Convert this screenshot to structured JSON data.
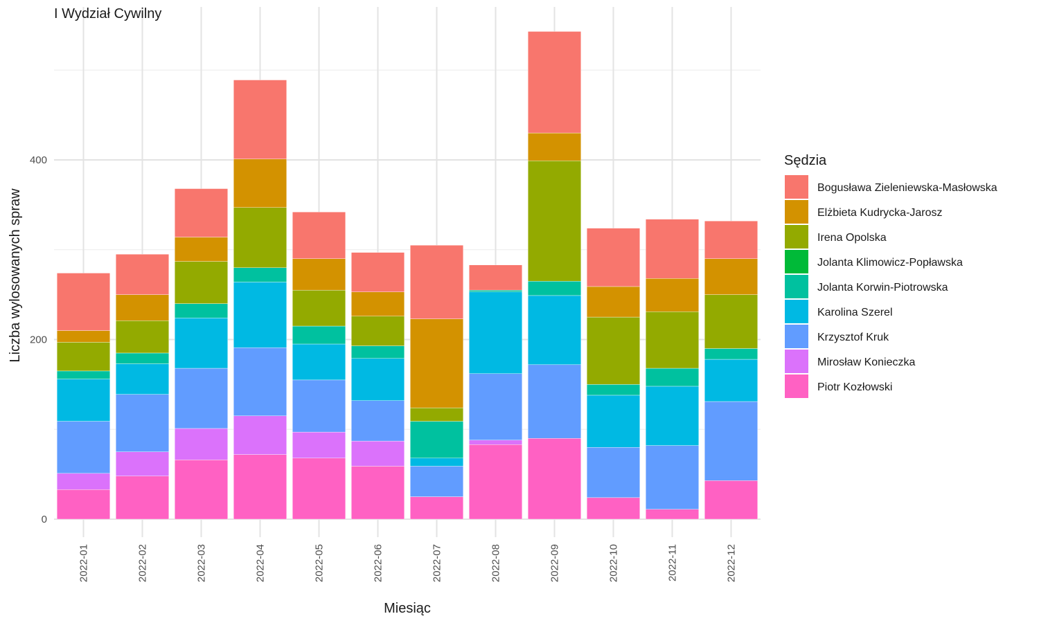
{
  "chart_data": {
    "type": "bar",
    "stacked": true,
    "title": "I Wydział Cywilny",
    "xlabel": "Miesiąc",
    "ylabel": "Liczba wylosowanych spraw",
    "ylim": [
      0,
      560
    ],
    "yticks": [
      0,
      200,
      400
    ],
    "grid": true,
    "legend_title": "Sędzia",
    "legend_position": "right",
    "categories": [
      "2022-01",
      "2022-02",
      "2022-03",
      "2022-04",
      "2022-05",
      "2022-06",
      "2022-07",
      "2022-08",
      "2022-09",
      "2022-10",
      "2022-11",
      "2022-12"
    ],
    "series": [
      {
        "name": "Piotr Kozłowski",
        "color": "#FF61C3",
        "values": [
          33,
          48,
          66,
          72,
          68,
          59,
          25,
          83,
          90,
          24,
          11,
          43
        ]
      },
      {
        "name": "Mirosław Konieczka",
        "color": "#DB72FB",
        "values": [
          18,
          27,
          35,
          43,
          29,
          28,
          0,
          5,
          0,
          0,
          0,
          0
        ]
      },
      {
        "name": "Krzysztof Kruk",
        "color": "#619CFF",
        "values": [
          58,
          64,
          67,
          76,
          58,
          45,
          34,
          74,
          82,
          56,
          71,
          88
        ]
      },
      {
        "name": "Karolina Szerel",
        "color": "#00B9E3",
        "values": [
          47,
          34,
          56,
          73,
          40,
          47,
          9,
          91,
          77,
          58,
          66,
          47
        ]
      },
      {
        "name": "Jolanta Korwin-Piotrowska",
        "color": "#00C19F",
        "values": [
          9,
          12,
          16,
          16,
          20,
          14,
          41,
          2,
          16,
          12,
          20,
          12
        ]
      },
      {
        "name": "Jolanta Klimowicz-Popławska",
        "color": "#00BA38",
        "values": [
          0,
          0,
          0,
          0,
          0,
          0,
          0,
          0,
          0,
          0,
          0,
          0
        ]
      },
      {
        "name": "Irena Opolska",
        "color": "#93AA00",
        "values": [
          32,
          36,
          47,
          67,
          40,
          33,
          15,
          0,
          134,
          75,
          63,
          60
        ]
      },
      {
        "name": "Elżbieta Kudrycka-Jarosz",
        "color": "#D39200",
        "values": [
          13,
          29,
          27,
          54,
          35,
          27,
          99,
          0,
          31,
          34,
          37,
          40
        ]
      },
      {
        "name": "Bogusława Zieleniewska-Masłowska",
        "color": "#F8766D",
        "values": [
          64,
          45,
          54,
          88,
          52,
          44,
          82,
          28,
          113,
          65,
          66,
          42
        ]
      }
    ],
    "legend_order": [
      "Bogusława Zieleniewska-Masłowska",
      "Elżbieta Kudrycka-Jarosz",
      "Irena Opolska",
      "Jolanta Klimowicz-Popławska",
      "Jolanta Korwin-Piotrowska",
      "Karolina Szerel",
      "Krzysztof Kruk",
      "Mirosław Konieczka",
      "Piotr Kozłowski"
    ]
  }
}
